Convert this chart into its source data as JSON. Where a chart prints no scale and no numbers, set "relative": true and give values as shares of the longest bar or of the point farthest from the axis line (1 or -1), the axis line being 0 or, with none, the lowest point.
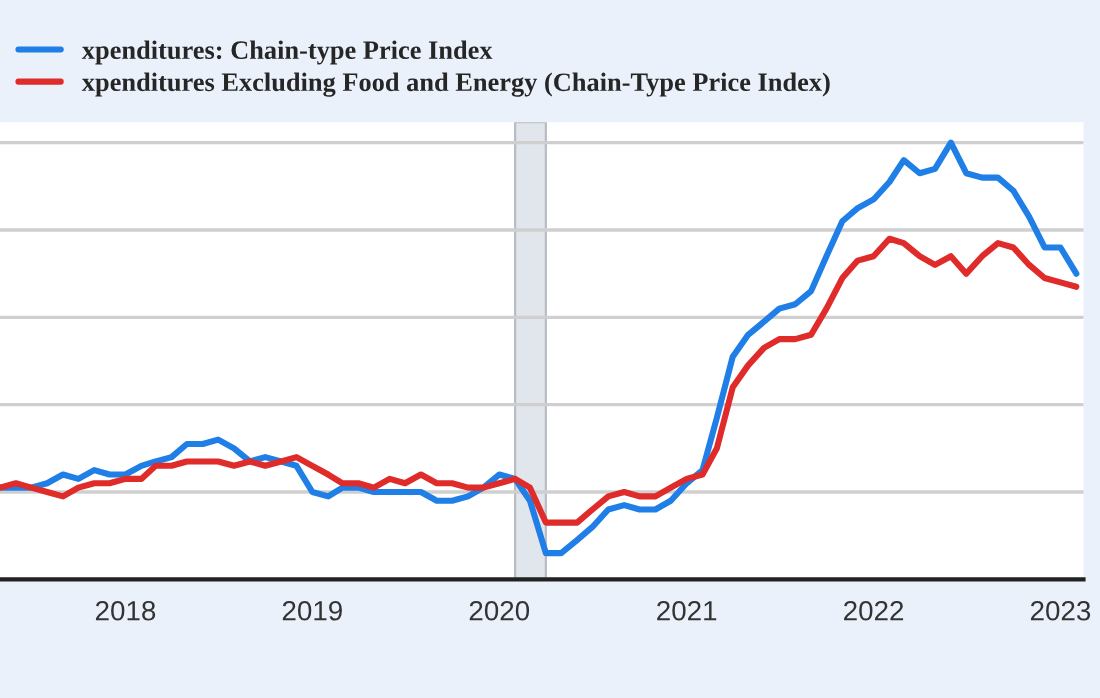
{
  "chart_data": {
    "type": "line",
    "relative": true,
    "x": [
      "2017-05",
      "2017-06",
      "2017-07",
      "2017-08",
      "2017-09",
      "2017-10",
      "2017-11",
      "2017-12",
      "2018-01",
      "2018-02",
      "2018-03",
      "2018-04",
      "2018-05",
      "2018-06",
      "2018-07",
      "2018-08",
      "2018-09",
      "2018-10",
      "2018-11",
      "2018-12",
      "2019-01",
      "2019-02",
      "2019-03",
      "2019-04",
      "2019-05",
      "2019-06",
      "2019-07",
      "2019-08",
      "2019-09",
      "2019-10",
      "2019-11",
      "2019-12",
      "2020-01",
      "2020-02",
      "2020-03",
      "2020-04",
      "2020-05",
      "2020-06",
      "2020-07",
      "2020-08",
      "2020-09",
      "2020-10",
      "2020-11",
      "2020-12",
      "2021-01",
      "2021-02",
      "2021-03",
      "2021-04",
      "2021-05",
      "2021-06",
      "2021-07",
      "2021-08",
      "2021-09",
      "2021-10",
      "2021-11",
      "2021-12",
      "2022-01",
      "2022-02",
      "2022-03",
      "2022-04",
      "2022-05",
      "2022-06",
      "2022-07",
      "2022-08",
      "2022-09",
      "2022-10",
      "2022-11",
      "2022-12",
      "2023-01",
      "2023-02"
    ],
    "series": [
      {
        "name": "xpenditures: Chain-type Price Index",
        "color": "#1f7fe6",
        "values": [
          0.21,
          0.21,
          0.21,
          0.22,
          0.24,
          0.23,
          0.25,
          0.24,
          0.24,
          0.26,
          0.27,
          0.28,
          0.31,
          0.31,
          0.32,
          0.3,
          0.27,
          0.28,
          0.27,
          0.26,
          0.2,
          0.19,
          0.21,
          0.21,
          0.2,
          0.2,
          0.2,
          0.2,
          0.18,
          0.18,
          0.19,
          0.21,
          0.24,
          0.23,
          0.18,
          0.06,
          0.06,
          0.09,
          0.12,
          0.16,
          0.17,
          0.16,
          0.16,
          0.18,
          0.22,
          0.25,
          0.37,
          0.51,
          0.56,
          0.59,
          0.62,
          0.63,
          0.66,
          0.74,
          0.82,
          0.85,
          0.87,
          0.91,
          0.96,
          0.93,
          0.94,
          1,
          0.93,
          0.92,
          0.92,
          0.89,
          0.83,
          0.76,
          0.76,
          0.7
        ]
      },
      {
        "name": "xpenditures Excluding Food and Energy (Chain-Type Price Index)",
        "color": "#e02b2b",
        "values": [
          0.21,
          0.22,
          0.21,
          0.2,
          0.19,
          0.21,
          0.22,
          0.22,
          0.23,
          0.23,
          0.26,
          0.26,
          0.27,
          0.27,
          0.27,
          0.26,
          0.27,
          0.26,
          0.27,
          0.28,
          0.26,
          0.24,
          0.22,
          0.22,
          0.21,
          0.23,
          0.22,
          0.24,
          0.22,
          0.22,
          0.21,
          0.21,
          0.22,
          0.23,
          0.21,
          0.13,
          0.13,
          0.13,
          0.16,
          0.19,
          0.2,
          0.19,
          0.19,
          0.21,
          0.23,
          0.24,
          0.3,
          0.44,
          0.49,
          0.53,
          0.55,
          0.55,
          0.56,
          0.62,
          0.69,
          0.73,
          0.74,
          0.78,
          0.77,
          0.74,
          0.72,
          0.74,
          0.7,
          0.74,
          0.77,
          0.76,
          0.72,
          0.69,
          0.68,
          0.67
        ]
      }
    ],
    "xlim": [
      "2017-05-01",
      "2023-02-15"
    ],
    "xticks": [
      "2018",
      "2019",
      "2020",
      "2021",
      "2022",
      "2023"
    ],
    "bands": [
      {
        "axis": "x",
        "from": "2020-02",
        "to": "2020-04",
        "color": "#e1e5ec"
      }
    ],
    "grid": "y",
    "legend": "top",
    "line_style": "solid",
    "marker": "none"
  }
}
